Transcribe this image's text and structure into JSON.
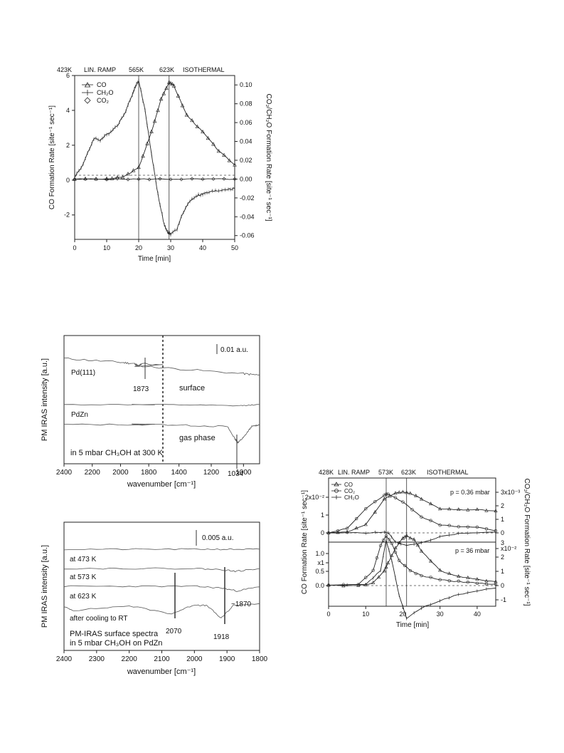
{
  "chart_data": [
    {
      "type": "line",
      "top_annotations": [
        "423K",
        "LIN. RAMP",
        "565K",
        "623K",
        "ISOTHERMAL"
      ],
      "xlabel": "Time [min]",
      "ylabel": "CO Formation Rate [site⁻¹ sec⁻¹]",
      "ylabel_right": "CO₂/CH₂O Formation Rate [site⁻¹ sec⁻¹]",
      "xlim": [
        0,
        50
      ],
      "ylim": [
        -3.4,
        6
      ],
      "ylim_right": [
        -0.064,
        0.11
      ],
      "x_ticks": [
        "0",
        "10",
        "20",
        "30",
        "40",
        "50"
      ],
      "y_ticks": [
        "-2",
        "0",
        "2",
        "4",
        "6"
      ],
      "y_ticks_right": [
        "-0.06",
        "-0.04",
        "-0.02",
        "0.00",
        "0.02",
        "0.04",
        "0.06",
        "0.08",
        "0.10"
      ],
      "vlines": [
        20,
        29.5
      ],
      "legend": [
        "CO",
        "CH₂O",
        "CO₂"
      ],
      "legend_position": "top-left",
      "series": [
        {
          "name": "CO",
          "axis": "right",
          "marker": "triangle",
          "x": [
            0,
            10,
            15,
            20,
            24,
            27,
            29.5,
            31,
            35,
            40,
            45,
            50
          ],
          "y": [
            0,
            0.0,
            0.002,
            0.012,
            0.05,
            0.085,
            0.103,
            0.099,
            0.068,
            0.05,
            0.03,
            0.015
          ]
        },
        {
          "name": "CH₂O",
          "axis": "left",
          "marker": "plus",
          "x": [
            0,
            2,
            4,
            6,
            8,
            10,
            12,
            14,
            16,
            18,
            19,
            20,
            22,
            24,
            26,
            28,
            29,
            30,
            32,
            34,
            36,
            38,
            40,
            42,
            45,
            48,
            50
          ],
          "y": [
            0.2,
            0.7,
            1.5,
            2.4,
            2.3,
            2.6,
            2.9,
            3.3,
            4.0,
            4.9,
            5.4,
            5.7,
            4.0,
            1.5,
            -0.8,
            -2.6,
            -3.0,
            -3.1,
            -2.8,
            -1.8,
            -1.2,
            -0.9,
            -0.8,
            -0.7,
            -0.6,
            -0.5,
            -0.5
          ]
        },
        {
          "name": "CO₂",
          "axis": "right",
          "marker": "diamond",
          "x": [
            0,
            10,
            20,
            30,
            40,
            50
          ],
          "y": [
            0,
            0,
            0,
            0,
            0,
            0
          ]
        }
      ]
    },
    {
      "type": "line",
      "xlabel": "wavenumber [cm⁻¹]",
      "ylabel": "PM IRAS intensity [a.u.]",
      "x_ticks": [
        "2400",
        "2200",
        "2000",
        "1800",
        "1400",
        "1200",
        "1000"
      ],
      "scale_bar": "0.01 a.u.",
      "annotations": [
        "Pd(111)",
        "1873",
        "surface",
        "PdZn",
        "gas phase",
        "in 5 mbar CH₃OH at 300 K",
        "1034"
      ],
      "series": [
        {
          "name": "Pd(111)",
          "x": [
            2400,
            2000,
            1900,
            1873,
            1850,
            1500,
            1000,
            900
          ],
          "y": [
            0,
            -0.1,
            -0.2,
            -0.6,
            -0.1,
            -0.3,
            -0.6,
            -0.7
          ]
        },
        {
          "name": "surface",
          "x": [
            2400,
            1500,
            1034,
            900
          ],
          "y": [
            0,
            0,
            -0.2,
            0
          ]
        },
        {
          "name": "gas phase",
          "x": [
            2400,
            1500,
            1100,
            1050,
            1034,
            1000,
            950,
            900
          ],
          "y": [
            0,
            0,
            -0.2,
            -1.5,
            -1.8,
            -1.3,
            -0.2,
            0
          ]
        }
      ]
    },
    {
      "type": "line",
      "xlabel": "wavenumber [cm⁻¹]",
      "ylabel": "PM IRAS intensity [a.u.]",
      "xlim": [
        2400,
        1800
      ],
      "x_ticks": [
        "2400",
        "2300",
        "2200",
        "2100",
        "2000",
        "1900",
        "1800"
      ],
      "scale_bar": "0.005 a.u.",
      "annotations": [
        "at 473 K",
        "at 573 K",
        "at 623 K",
        "after cooling to RT",
        "2070",
        "1918",
        "~1870",
        "PM-IRAS surface spectra",
        "in 5 mbar CH₃OH on PdZn"
      ],
      "series": [
        {
          "name": "at 473 K",
          "x": [
            2400,
            2200,
            2000,
            1900,
            1800
          ],
          "y": [
            0,
            0,
            0,
            0,
            0
          ]
        },
        {
          "name": "at 573 K",
          "x": [
            2400,
            2200,
            2000,
            1918,
            1870,
            1800
          ],
          "y": [
            0,
            0,
            0,
            -0.2,
            -0.5,
            0
          ]
        },
        {
          "name": "at 623 K",
          "x": [
            2400,
            2200,
            2000,
            1918,
            1870,
            1800
          ],
          "y": [
            0,
            0,
            0,
            -0.3,
            -0.8,
            -0.1
          ]
        },
        {
          "name": "after cooling to RT",
          "x": [
            2400,
            2370,
            2200,
            2070,
            2000,
            1960,
            1918,
            1880,
            1800
          ],
          "y": [
            0,
            -0.6,
            0.2,
            -1.2,
            0.4,
            0.2,
            -2.0,
            0.3,
            0.6
          ]
        }
      ]
    },
    {
      "type": "line",
      "top_annotations": [
        "428K",
        "LIN. RAMP",
        "573K",
        "623K",
        "ISOTHERMAL"
      ],
      "xlabel": "Time [min]",
      "ylabel": "CO Formation Rate [site⁻¹ sec⁻¹]",
      "ylabel_right": "CO₂/CH₂O Formation Rate [site⁻¹ sec⁻¹]",
      "xlim": [
        0,
        45
      ],
      "x_ticks": [
        "0",
        "10",
        "20",
        "30",
        "40"
      ],
      "vlines": [
        15.5,
        21
      ],
      "legend": [
        "CO",
        "CO₂",
        "CH₂O"
      ],
      "legend_position": "top-left",
      "panels": [
        {
          "label": "p = 0.36 mbar",
          "y_ticks": [
            "0",
            "1",
            "2x10⁻²"
          ],
          "y_ticks_right": [
            "0",
            "1",
            "2",
            "3x10⁻³"
          ],
          "series": [
            {
              "name": "CO",
              "x": [
                0,
                5,
                10,
                15,
                18,
                20,
                22,
                25,
                30,
                35,
                40,
                45
              ],
              "y": [
                0,
                0.03,
                0.2,
                0.85,
                1.0,
                1.02,
                1.0,
                0.85,
                0.6,
                0.58,
                0.58,
                0.55
              ]
            },
            {
              "name": "CO₂",
              "x": [
                0,
                5,
                10,
                15,
                16,
                20,
                25,
                30,
                35,
                40,
                45
              ],
              "y": [
                0,
                0.12,
                0.6,
                0.95,
                0.97,
                0.78,
                0.4,
                0.2,
                0.16,
                0.15,
                0.05
              ]
            },
            {
              "name": "CH₂O",
              "x": [
                0,
                10,
                15,
                16,
                18,
                21,
                25,
                30,
                35,
                40,
                45
              ],
              "y": [
                0,
                0,
                0.02,
                0.0,
                -0.22,
                -0.32,
                -0.25,
                -0.1,
                -0.02,
                0.0,
                0.02
              ]
            }
          ]
        },
        {
          "label": "p = 36 mbar",
          "y_ticks": [
            "0.0",
            "0.5",
            "x1",
            "1.0"
          ],
          "y_ticks_right": [
            "-1",
            "0",
            "1",
            "2",
            "x10⁻²",
            "3"
          ],
          "series": [
            {
              "name": "CO",
              "x": [
                0,
                8,
                12,
                15,
                16,
                18,
                20,
                21,
                23,
                25,
                30,
                35,
                40,
                45
              ],
              "y": [
                0,
                0,
                0.05,
                0.3,
                0.45,
                0.75,
                0.95,
                1.0,
                0.92,
                0.7,
                0.3,
                0.18,
                0.12,
                0.08
              ]
            },
            {
              "name": "CO₂",
              "x": [
                0,
                8,
                12,
                14,
                15.5,
                17,
                19,
                22,
                25,
                30,
                35,
                40,
                45
              ],
              "y": [
                0,
                0.02,
                0.3,
                0.8,
                1.0,
                0.85,
                0.5,
                0.3,
                0.2,
                0.12,
                0.08,
                0.05,
                0.03
              ]
            },
            {
              "name": "CH₂O",
              "x": [
                0,
                10,
                14,
                15.5,
                17,
                19,
                21,
                25,
                30,
                35,
                40,
                45
              ],
              "y": [
                0,
                0.02,
                0.3,
                0.92,
                0.5,
                -0.2,
                -0.65,
                -0.45,
                -0.3,
                -0.18,
                -0.1,
                -0.05
              ]
            }
          ]
        }
      ]
    }
  ]
}
